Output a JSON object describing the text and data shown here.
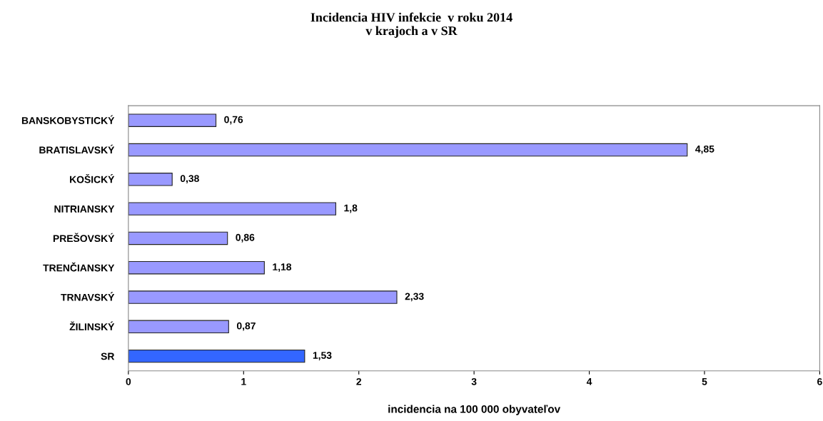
{
  "chart_data": {
    "type": "bar",
    "orientation": "horizontal",
    "title": "Incidencia HIV infekcie  v roku 2014\nv krajoch a v SR",
    "xlabel": "incidencia na 100 000 obyvateľov",
    "categories": [
      "BANSKOBYSTICKÝ",
      "BRATISLAVSKÝ",
      "KOŠICKÝ",
      "NITRIANSKY",
      "PREŠOVSKÝ",
      "TRENČIANSKY",
      "TRNAVSKÝ",
      "ŽILINSKÝ",
      "SR"
    ],
    "values": [
      0.76,
      4.85,
      0.38,
      1.8,
      0.86,
      1.18,
      2.33,
      0.87,
      1.53
    ],
    "colors": [
      "#9999ff",
      "#9999ff",
      "#9999ff",
      "#9999ff",
      "#9999ff",
      "#9999ff",
      "#9999ff",
      "#9999ff",
      "#3366ff"
    ],
    "value_labels": [
      "0,76",
      "4,85",
      "0,38",
      "1,8",
      "0,86",
      "1,18",
      "2,33",
      "0,87",
      "1,53"
    ],
    "xlim": [
      0,
      6
    ],
    "xticks": [
      0,
      1,
      2,
      3,
      4,
      5,
      6
    ],
    "grid": false,
    "legend": false
  }
}
